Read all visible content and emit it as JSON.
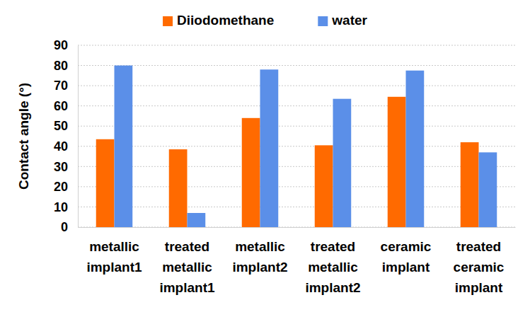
{
  "chart_data": {
    "type": "bar",
    "y_label": "Contact angle (°)",
    "categories": [
      "metallic implant1",
      "treated metallic implant1",
      "metallic implant2",
      "treated metallic implant2",
      "ceramic implant",
      "treated ceramic implant"
    ],
    "series": [
      {
        "name": "Diiodomethane",
        "color": "#ff6a00",
        "values": [
          43.5,
          38.5,
          54,
          40.5,
          64.5,
          42
        ]
      },
      {
        "name": "water",
        "color": "#5b8fe8",
        "values": [
          80,
          7,
          78,
          63.5,
          77.5,
          37
        ]
      }
    ],
    "ylim": [
      0,
      90
    ],
    "yticks": [
      0,
      10,
      20,
      30,
      40,
      50,
      60,
      70,
      80,
      90
    ],
    "grid": true,
    "legend": "top"
  }
}
